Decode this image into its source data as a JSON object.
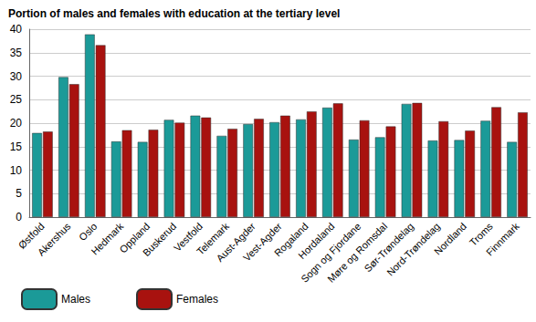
{
  "chart_data": {
    "type": "bar",
    "title": "Portion of males and females with education at the tertiary level",
    "categories": [
      "Østfold",
      "Akershus",
      "Oslo",
      "Hedmark",
      "Oppland",
      "Buskerud",
      "Vestfold",
      "Telemark",
      "Aust-Agder",
      "Vest-Agder",
      "Rogaland",
      "Hordaland",
      "Sogn og Fjordane",
      "Møre og Romsdal",
      "Sør-Trøndelag",
      "Nord-Trøndelag",
      "Nordland",
      "Troms",
      "Finnmark"
    ],
    "series": [
      {
        "name": "Males",
        "color": "#1b9a98",
        "values": [
          17.9,
          29.8,
          38.9,
          16.1,
          16.0,
          20.7,
          21.6,
          17.3,
          19.8,
          20.2,
          20.8,
          23.3,
          16.5,
          17.0,
          24.1,
          16.3,
          16.4,
          20.5,
          16.0
        ]
      },
      {
        "name": "Females",
        "color": "#a8120f",
        "values": [
          18.2,
          28.3,
          36.6,
          18.5,
          18.6,
          20.1,
          21.2,
          18.8,
          20.9,
          21.6,
          22.5,
          24.2,
          20.6,
          19.3,
          24.3,
          20.4,
          18.4,
          23.4,
          22.3
        ]
      }
    ],
    "ylim": [
      0,
      40
    ],
    "yticks": [
      0,
      5,
      10,
      15,
      20,
      25,
      30,
      35,
      40
    ],
    "grid": true,
    "legend": "bottom-left"
  }
}
